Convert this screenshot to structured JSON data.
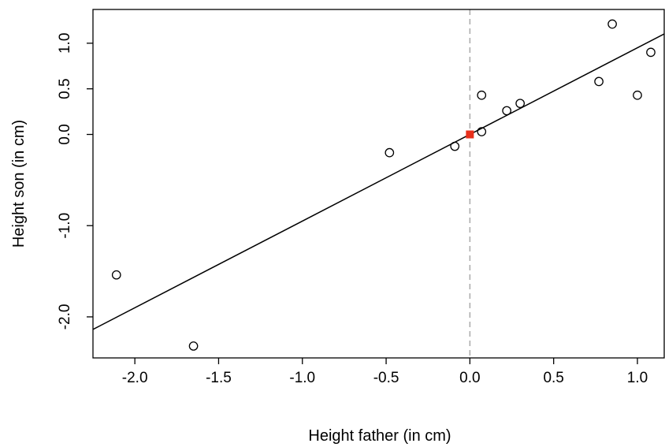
{
  "chart_data": {
    "type": "scatter",
    "title": "",
    "xlabel": "Height father (in cm)",
    "ylabel": "Height son (in cm)",
    "xlim": [
      -2.25,
      1.16
    ],
    "ylim": [
      -2.45,
      1.37
    ],
    "x_ticks": [
      -2.0,
      -1.5,
      -1.0,
      -0.5,
      0.0,
      0.5,
      1.0
    ],
    "x_tick_labels": [
      "-2.0",
      "-1.5",
      "-1.0",
      "-0.5",
      "0.0",
      "0.5",
      "1.0"
    ],
    "y_ticks": [
      -2.0,
      -1.0,
      0.0,
      0.5,
      1.0
    ],
    "y_tick_labels": [
      "-2.0",
      "-1.0",
      "0.0",
      "0.5",
      "1.0"
    ],
    "grid": false,
    "points": [
      {
        "x": -2.11,
        "y": -1.54
      },
      {
        "x": -1.65,
        "y": -2.32
      },
      {
        "x": -0.48,
        "y": -0.2
      },
      {
        "x": -0.09,
        "y": -0.13
      },
      {
        "x": 0.07,
        "y": 0.03
      },
      {
        "x": 0.07,
        "y": 0.43
      },
      {
        "x": 0.22,
        "y": 0.26
      },
      {
        "x": 0.3,
        "y": 0.34
      },
      {
        "x": 0.77,
        "y": 0.58
      },
      {
        "x": 0.85,
        "y": 1.21
      },
      {
        "x": 1.0,
        "y": 0.43
      },
      {
        "x": 1.08,
        "y": 0.9
      }
    ],
    "regression_line": {
      "intercept": 0.0,
      "slope": 0.95
    },
    "reference_vline": {
      "x": 0.0,
      "style": "dashed"
    },
    "highlight_point": {
      "x": 0.0,
      "y": 0.0,
      "shape": "square"
    },
    "colors": {
      "points": "#000000",
      "line": "#000000",
      "vline": "#aaaaaa",
      "highlight": "#e8301c"
    }
  }
}
